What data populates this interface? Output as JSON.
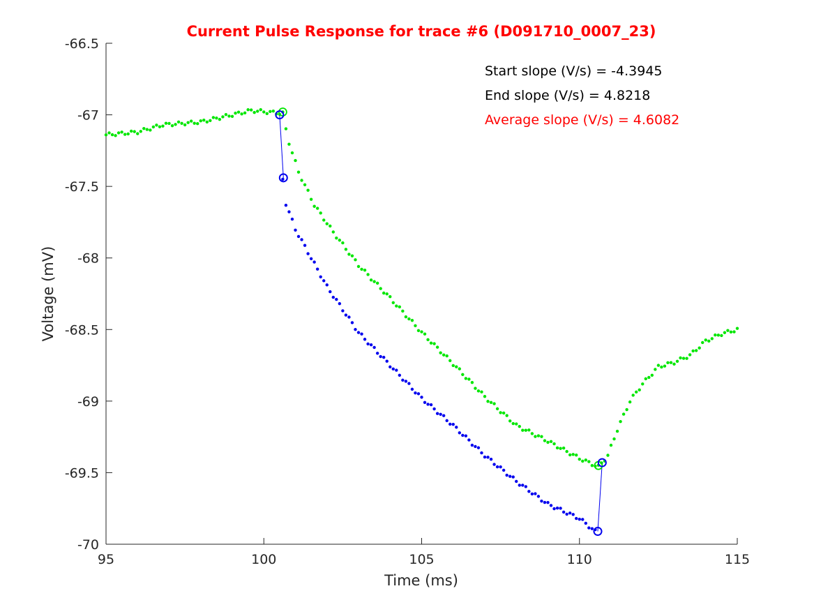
{
  "colors": {
    "title": "#ff0000",
    "axis": "#262626",
    "series_green": "#00e600",
    "series_blue": "#0000ee",
    "annotation_default": "#000000",
    "annotation_highlight": "#ff0000"
  },
  "chart_data": {
    "type": "scatter",
    "title": "Current Pulse Response for trace #6 (D091710_0007_23)",
    "xlabel": "Time (ms)",
    "ylabel": "Voltage (mV)",
    "xlim": [
      95,
      115
    ],
    "ylim": [
      -70,
      -66.5
    ],
    "xticks": [
      95,
      100,
      105,
      110,
      115
    ],
    "xtick_labels": [
      "95",
      "100",
      "105",
      "110",
      "115"
    ],
    "yticks": [
      -66.5,
      -67,
      -67.5,
      -68,
      -68.5,
      -69,
      -69.5,
      -70
    ],
    "ytick_labels": [
      "-66.5",
      "-67",
      "-67.5",
      "-68",
      "-68.5",
      "-69",
      "-69.5",
      "-70"
    ],
    "grid": false,
    "box": "left-bottom",
    "series": [
      {
        "color": "green",
        "marker": "dot",
        "anchors": [
          [
            95.0,
            -67.14
          ],
          [
            96.0,
            -67.12
          ],
          [
            96.8,
            -67.07
          ],
          [
            98.0,
            -67.05
          ],
          [
            99.6,
            -66.97
          ],
          [
            100.6,
            -66.99
          ],
          [
            100.75,
            -67.16
          ],
          [
            101.1,
            -67.4
          ],
          [
            101.6,
            -67.63
          ],
          [
            102.2,
            -67.82
          ],
          [
            103.0,
            -68.05
          ],
          [
            104.0,
            -68.28
          ],
          [
            105.0,
            -68.52
          ],
          [
            106.0,
            -68.74
          ],
          [
            107.0,
            -68.97
          ],
          [
            108.0,
            -69.17
          ],
          [
            109.0,
            -69.28
          ],
          [
            110.0,
            -69.4
          ],
          [
            110.6,
            -69.46
          ],
          [
            110.9,
            -69.38
          ],
          [
            111.2,
            -69.2
          ],
          [
            111.6,
            -69.0
          ],
          [
            112.0,
            -68.88
          ],
          [
            112.5,
            -68.76
          ],
          [
            113.0,
            -68.73
          ],
          [
            113.5,
            -68.68
          ],
          [
            114.0,
            -68.58
          ],
          [
            114.5,
            -68.53
          ],
          [
            115.0,
            -68.5
          ]
        ]
      },
      {
        "color": "blue",
        "marker": "dot",
        "anchors": [
          [
            100.6,
            -67.45
          ],
          [
            100.7,
            -67.62
          ],
          [
            101.0,
            -67.8
          ],
          [
            101.5,
            -68.0
          ],
          [
            102.0,
            -68.2
          ],
          [
            103.0,
            -68.52
          ],
          [
            104.0,
            -68.75
          ],
          [
            105.0,
            -68.98
          ],
          [
            106.0,
            -69.17
          ],
          [
            107.0,
            -69.38
          ],
          [
            108.0,
            -69.56
          ],
          [
            109.0,
            -69.72
          ],
          [
            110.0,
            -69.82
          ],
          [
            110.5,
            -69.91
          ]
        ]
      }
    ],
    "markers": {
      "green_circles": [
        [
          100.6,
          -66.98
        ],
        [
          110.6,
          -69.45
        ]
      ],
      "blue_circles": [
        [
          100.5,
          -67.0
        ],
        [
          100.62,
          -67.44
        ],
        [
          110.58,
          -69.91
        ],
        [
          110.72,
          -69.43
        ]
      ],
      "blue_lines": [
        [
          [
            100.5,
            -67.0
          ],
          [
            100.62,
            -67.44
          ]
        ],
        [
          [
            110.58,
            -69.91
          ],
          [
            110.72,
            -69.43
          ]
        ]
      ]
    },
    "annotations": [
      {
        "text": "Start slope (V/s) = -4.3945",
        "color": "black"
      },
      {
        "text": "End slope (V/s) = 4.8218",
        "color": "black"
      },
      {
        "text": "Average slope (V/s) = 4.6082",
        "color": "red"
      }
    ]
  }
}
